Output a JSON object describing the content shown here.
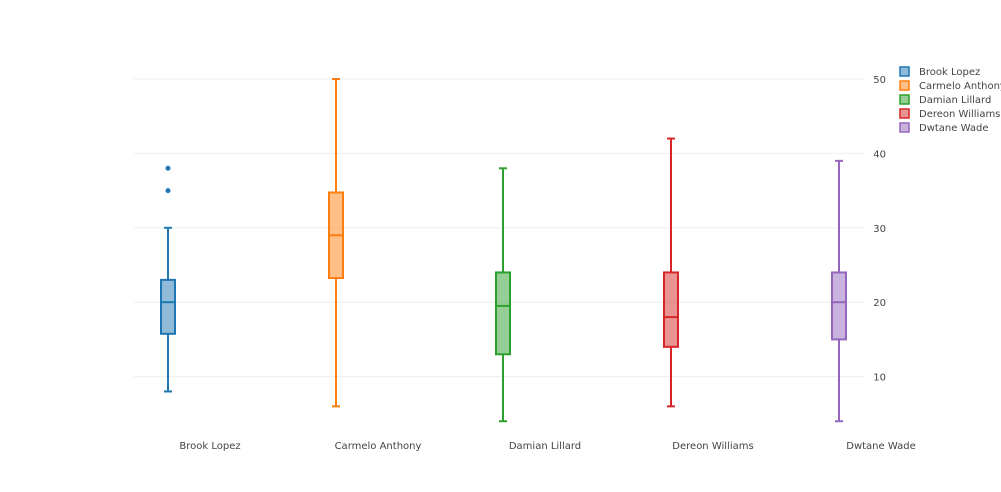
{
  "chart_data": {
    "type": "box",
    "title": "",
    "xlabel": "",
    "ylabel": "",
    "ylim": [
      3,
      52
    ],
    "y_ticks": [
      10,
      20,
      30,
      40,
      50
    ],
    "y_axis_side": "right",
    "grid": true,
    "legend_placement": "top-right",
    "categories": [
      "Brook Lopez",
      "Carmelo Anthony",
      "Damian Lillard",
      "Dereon Williams",
      "Dwtane Wade"
    ],
    "series": [
      {
        "name": "Brook Lopez",
        "color": "#1f77b4",
        "min": 8,
        "q1": 15.75,
        "median": 20,
        "q3": 23,
        "max": 30,
        "outliers": [
          35,
          38
        ]
      },
      {
        "name": "Carmelo Anthony",
        "color": "#ff7f0e",
        "min": 6,
        "q1": 23.25,
        "median": 29,
        "q3": 34.75,
        "max": 50,
        "outliers": []
      },
      {
        "name": "Damian Lillard",
        "color": "#2ca02c",
        "min": 4,
        "q1": 13,
        "median": 19.5,
        "q3": 24,
        "max": 38,
        "outliers": []
      },
      {
        "name": "Dereon Williams",
        "color": "#d62728",
        "min": 6,
        "q1": 14,
        "median": 18,
        "q3": 24,
        "max": 42,
        "outliers": []
      },
      {
        "name": "Dwtane Wade",
        "color": "#9467bd",
        "min": 4,
        "q1": 15,
        "median": 20,
        "q3": 24,
        "max": 39,
        "outliers": []
      }
    ]
  }
}
